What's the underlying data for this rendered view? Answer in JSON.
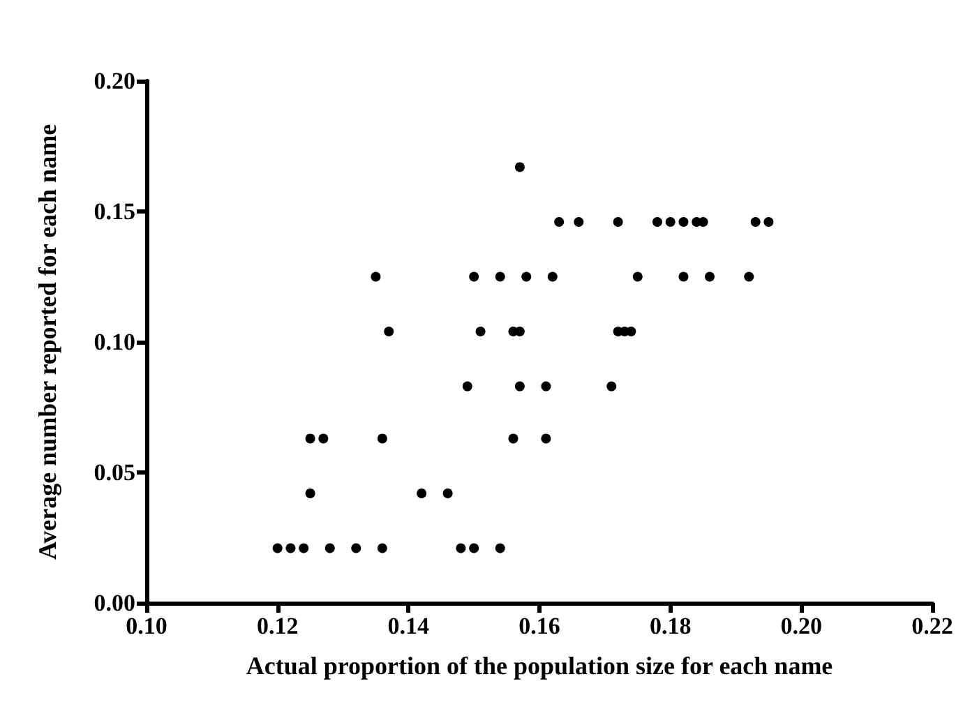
{
  "chart_data": {
    "type": "scatter",
    "xlabel": "Actual proportion of the population size for each name",
    "ylabel": "Average number reported for each name",
    "xlim": [
      0.1,
      0.22
    ],
    "xticks": [
      {
        "value": 0.1,
        "label": "0.10"
      },
      0.12,
      0.14,
      0.16,
      0.18,
      {
        "value": 0.2,
        "label": "0.20"
      },
      0.22
    ],
    "ylim": [
      0,
      0.2
    ],
    "yticks": [
      {
        "value": 0,
        "label": "0.00"
      },
      0.05,
      {
        "value": 0.1,
        "label": "0.10"
      },
      0.15,
      {
        "value": 0.2,
        "label": "0.20"
      }
    ],
    "grid": false,
    "marker": "circle",
    "series": [
      {
        "color": "#000000",
        "x": [
          0.12,
          0.122,
          0.124,
          0.128,
          0.132,
          0.136,
          0.148,
          0.15,
          0.154,
          0.125,
          0.142,
          0.146,
          0.125,
          0.127,
          0.136,
          0.156,
          0.161,
          0.149,
          0.157,
          0.161,
          0.171,
          0.137,
          0.151,
          0.156,
          0.157,
          0.172,
          0.173,
          0.174,
          0.135,
          0.15,
          0.154,
          0.158,
          0.162,
          0.175,
          0.182,
          0.186,
          0.192,
          0.163,
          0.166,
          0.172,
          0.178,
          0.18,
          0.182,
          0.184,
          0.185,
          0.193,
          0.195,
          0.157
        ],
        "values": [
          0.021,
          0.021,
          0.021,
          0.021,
          0.021,
          0.021,
          0.021,
          0.021,
          0.021,
          0.042,
          0.042,
          0.042,
          0.063,
          0.063,
          0.063,
          0.063,
          0.063,
          0.083,
          0.083,
          0.083,
          0.083,
          0.104,
          0.104,
          0.104,
          0.104,
          0.104,
          0.104,
          0.104,
          0.125,
          0.125,
          0.125,
          0.125,
          0.125,
          0.125,
          0.125,
          0.125,
          0.125,
          0.146,
          0.146,
          0.146,
          0.146,
          0.146,
          0.146,
          0.146,
          0.146,
          0.146,
          0.146,
          0.167
        ]
      }
    ]
  }
}
